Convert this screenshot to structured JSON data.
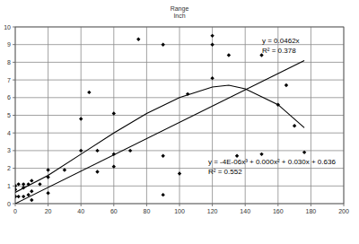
{
  "chart_data": {
    "type": "scatter",
    "title": "Range",
    "subtitle": "Inch",
    "xlim": [
      0,
      200
    ],
    "xticks": [
      0,
      20,
      40,
      60,
      80,
      100,
      120,
      140,
      160,
      180,
      200
    ],
    "ylim": [
      0,
      10
    ],
    "yticks": [
      0,
      1,
      2,
      3,
      4,
      5,
      6,
      7,
      8,
      9,
      10
    ],
    "grid": true,
    "annotations": [
      "y = 0.0462x",
      "R² = 0.378",
      "y = -4E-06x³ + 0.000x² + 0.030x + 0.636",
      "R² = 0.552"
    ],
    "series": [
      {
        "type": "scatter",
        "color": "#000000",
        "marker": "diamond",
        "x": [
          0,
          0,
          0,
          2,
          2,
          5,
          5,
          5,
          8,
          8,
          10,
          10,
          10,
          15,
          20,
          20,
          20,
          30,
          40,
          40,
          45,
          50,
          50,
          60,
          60,
          60,
          70,
          75,
          90,
          90,
          90,
          100,
          105,
          120,
          120,
          120,
          130,
          135,
          150,
          150,
          160,
          165,
          170,
          176
        ],
        "values": [
          0.4,
          0.8,
          1.0,
          1.1,
          0.4,
          0.4,
          0.9,
          1.1,
          0.5,
          1.1,
          0.2,
          0.7,
          1.3,
          1.1,
          0.6,
          1.5,
          1.9,
          1.9,
          3.0,
          4.8,
          6.3,
          1.8,
          3.0,
          2.1,
          2.8,
          5.1,
          3.0,
          9.3,
          9.0,
          2.7,
          0.5,
          1.7,
          6.2,
          9.5,
          9.0,
          7.1,
          8.4,
          2.7,
          8.4,
          2.8,
          5.6,
          6.7,
          4.4,
          2.9
        ]
      },
      {
        "type": "line",
        "color": "#000000",
        "line_style": "solid",
        "x": [
          0,
          176
        ],
        "values": [
          0,
          8.1
        ]
      },
      {
        "type": "line",
        "color": "#000000",
        "line_style": "solid",
        "x": [
          0,
          20,
          40,
          60,
          80,
          100,
          120,
          130,
          140,
          160,
          176
        ],
        "values": [
          0.64,
          1.6,
          2.8,
          4.0,
          5.1,
          6.0,
          6.6,
          6.7,
          6.5,
          5.6,
          4.3
        ]
      }
    ]
  }
}
